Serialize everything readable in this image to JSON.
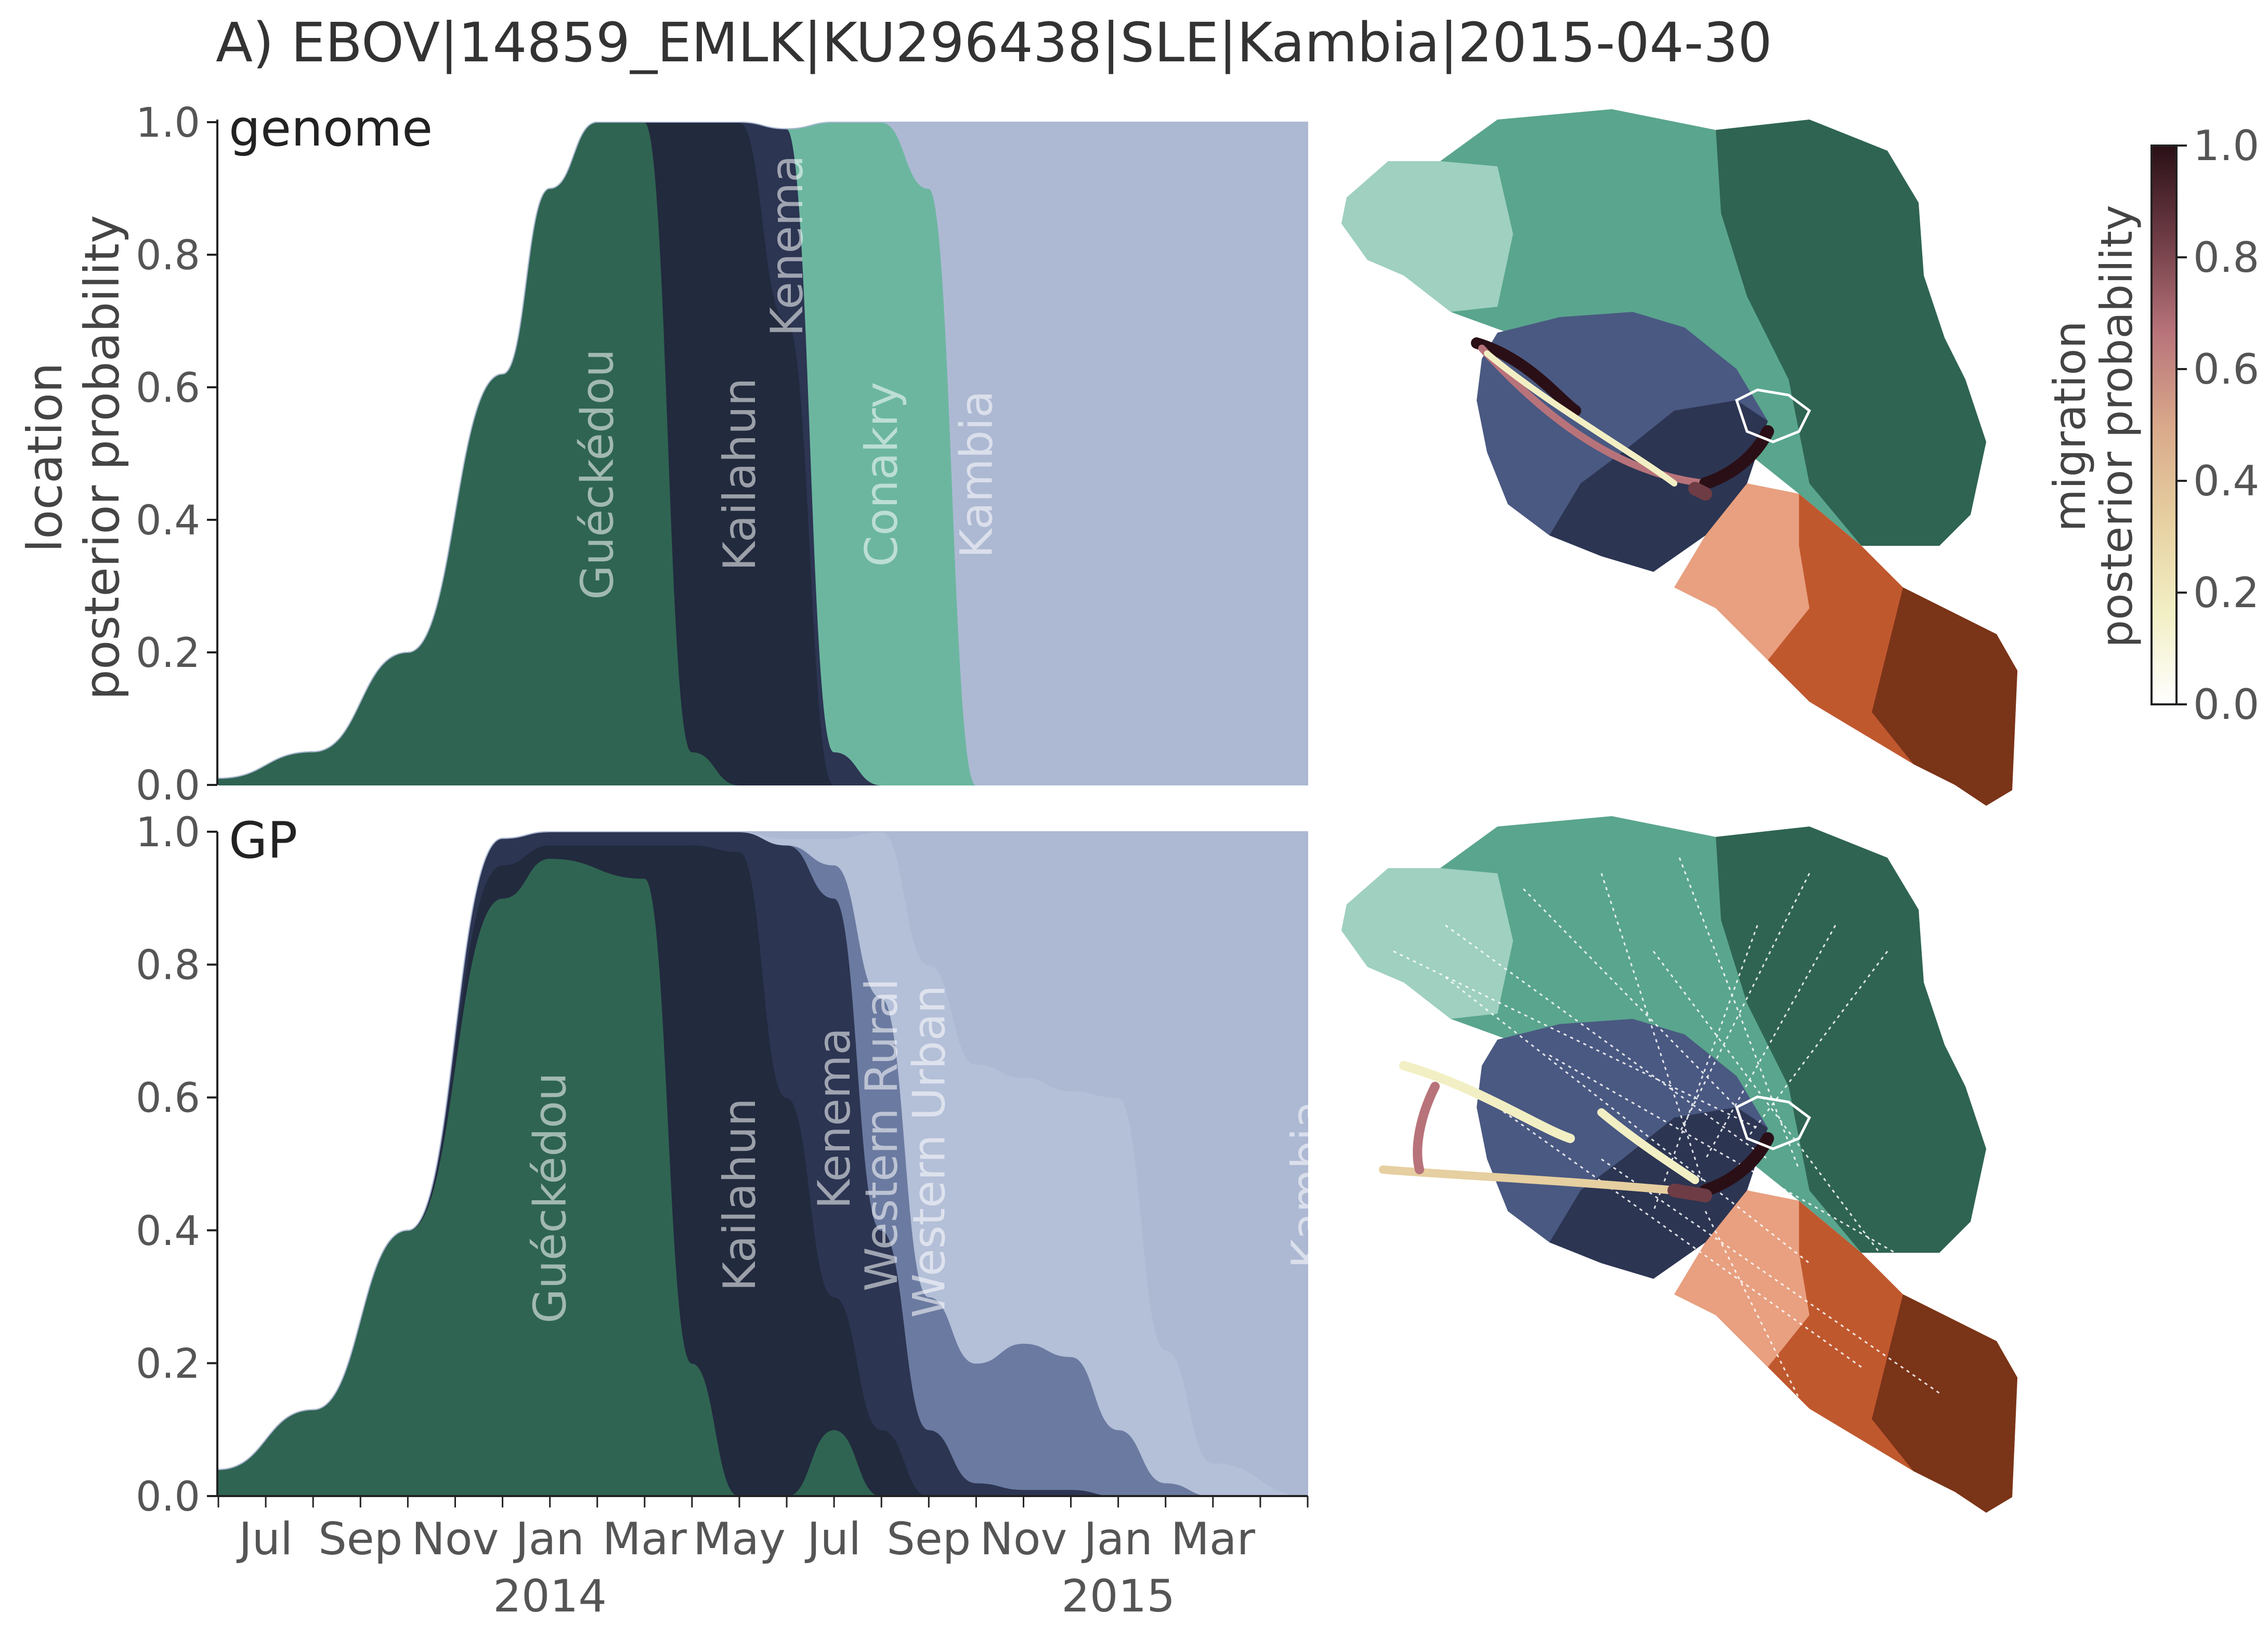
{
  "figure": {
    "title": "A)  EBOV|14859_EMLK|KU296438|SLE|Kambia|2015-04-30",
    "ylabel_line1": "location",
    "ylabel_line2": "posterior probability",
    "x_tick_labels": [
      "Jul",
      "Sep",
      "Nov",
      "Jan",
      "Mar",
      "May",
      "Jul",
      "Sep",
      "Nov",
      "Jan",
      "Mar"
    ],
    "x_year_labels": [
      "2014",
      "2015"
    ],
    "y_tick_labels": [
      "0.0",
      "0.2",
      "0.4",
      "0.6",
      "0.8",
      "1.0"
    ]
  },
  "colorbar": {
    "label_line1": "migration",
    "label_line2": "posterior probability",
    "ticks": [
      "0.0",
      "0.2",
      "0.4",
      "0.6",
      "0.8",
      "1.0"
    ],
    "stops": [
      "#ffffff",
      "#f2efc4",
      "#e6cfa0",
      "#d9a88a",
      "#b8737a",
      "#6e3c45",
      "#2a0f16"
    ]
  },
  "colors": {
    "gueckedou": "#2f6452",
    "kailahun": "#222a3e",
    "kenema": "#2c3552",
    "conakry": "#6cb6a0",
    "kambia": "#adb9d3",
    "western_urban": "#b4bfd8",
    "western_rural": "#6b7aa0",
    "other_orange": "#e8906f"
  },
  "chart_data": [
    {
      "type": "area",
      "panel_label": "genome",
      "x_range": [
        "2013-06-01",
        "2015-05-01"
      ],
      "ylim": [
        0,
        1
      ],
      "stacking": "stacked",
      "area_labels": [
        "Guéckédou",
        "Kailahun",
        "Kenema",
        "Conakry",
        "Kambia"
      ],
      "x": [
        "2013-06",
        "2013-08",
        "2013-10",
        "2013-12",
        "2014-01",
        "2014-02",
        "2014-03",
        "2014-04",
        "2014-05",
        "2014-06",
        "2014-07",
        "2014-08",
        "2014-09",
        "2014-10",
        "2014-12",
        "2015-02",
        "2015-05"
      ],
      "series": [
        {
          "name": "Guéckédou",
          "values": [
            0.01,
            0.05,
            0.2,
            0.62,
            0.9,
            1.0,
            1.0,
            0.05,
            0.0,
            0.0,
            0.0,
            0.0,
            0.0,
            0.0,
            0.0,
            0.0,
            0.0
          ]
        },
        {
          "name": "Kailahun",
          "values": [
            0.0,
            0.0,
            0.0,
            0.0,
            0.0,
            0.0,
            0.0,
            0.95,
            1.0,
            0.7,
            0.0,
            0.0,
            0.0,
            0.0,
            0.0,
            0.0,
            0.0
          ]
        },
        {
          "name": "Kenema",
          "values": [
            0.0,
            0.0,
            0.0,
            0.0,
            0.0,
            0.0,
            0.0,
            0.0,
            0.0,
            0.29,
            0.05,
            0.0,
            0.0,
            0.0,
            0.0,
            0.0,
            0.0
          ]
        },
        {
          "name": "Conakry",
          "values": [
            0.0,
            0.0,
            0.0,
            0.0,
            0.0,
            0.0,
            0.0,
            0.0,
            0.0,
            0.0,
            0.95,
            1.0,
            0.9,
            0.0,
            0.0,
            0.0,
            0.0
          ]
        },
        {
          "name": "Kambia",
          "values": [
            0.0,
            0.0,
            0.0,
            0.0,
            0.0,
            0.0,
            0.0,
            0.0,
            0.0,
            0.0,
            0.0,
            0.0,
            0.1,
            1.0,
            1.0,
            1.0,
            1.0
          ]
        }
      ]
    },
    {
      "type": "area",
      "panel_label": "GP",
      "x_range": [
        "2013-06-01",
        "2015-05-01"
      ],
      "ylim": [
        0,
        1
      ],
      "stacking": "stacked",
      "area_labels": [
        "Guéckédou",
        "Kailahun",
        "Kenema",
        "Western Rural",
        "Western Urban",
        "Kambia"
      ],
      "x": [
        "2013-06",
        "2013-08",
        "2013-10",
        "2013-12",
        "2014-01",
        "2014-03",
        "2014-04",
        "2014-05",
        "2014-06",
        "2014-07",
        "2014-08",
        "2014-09",
        "2014-10",
        "2014-11",
        "2014-12",
        "2015-01",
        "2015-02",
        "2015-03",
        "2015-05"
      ],
      "series": [
        {
          "name": "Guéckédou",
          "values": [
            0.04,
            0.13,
            0.4,
            0.9,
            0.96,
            0.93,
            0.2,
            0.0,
            0.0,
            0.1,
            0.0,
            0.0,
            0.0,
            0.0,
            0.0,
            0.0,
            0.0,
            0.0,
            0.0
          ]
        },
        {
          "name": "Kailahun",
          "values": [
            0.0,
            0.0,
            0.0,
            0.05,
            0.02,
            0.05,
            0.78,
            0.97,
            0.6,
            0.2,
            0.1,
            0.0,
            0.0,
            0.0,
            0.0,
            0.0,
            0.0,
            0.0,
            0.0
          ]
        },
        {
          "name": "Kenema",
          "values": [
            0.0,
            0.0,
            0.0,
            0.04,
            0.02,
            0.02,
            0.02,
            0.03,
            0.38,
            0.6,
            0.3,
            0.1,
            0.02,
            0.01,
            0.01,
            0.0,
            0.0,
            0.0,
            0.0
          ]
        },
        {
          "name": "Western Rural",
          "values": [
            0.0,
            0.0,
            0.0,
            0.0,
            0.0,
            0.0,
            0.0,
            0.0,
            0.0,
            0.05,
            0.35,
            0.2,
            0.18,
            0.22,
            0.2,
            0.1,
            0.02,
            0.0,
            0.0
          ]
        },
        {
          "name": "Western Urban",
          "values": [
            0.0,
            0.0,
            0.0,
            0.0,
            0.0,
            0.0,
            0.0,
            0.0,
            0.01,
            0.04,
            0.25,
            0.5,
            0.45,
            0.4,
            0.4,
            0.5,
            0.2,
            0.05,
            0.0
          ]
        },
        {
          "name": "Kambia",
          "values": [
            0.0,
            0.0,
            0.0,
            0.0,
            0.0,
            0.0,
            0.0,
            0.0,
            0.01,
            0.01,
            0.0,
            0.2,
            0.35,
            0.37,
            0.39,
            0.4,
            0.78,
            0.95,
            1.0
          ]
        }
      ]
    }
  ],
  "maps": {
    "top_label": "",
    "bottom_label": ""
  }
}
